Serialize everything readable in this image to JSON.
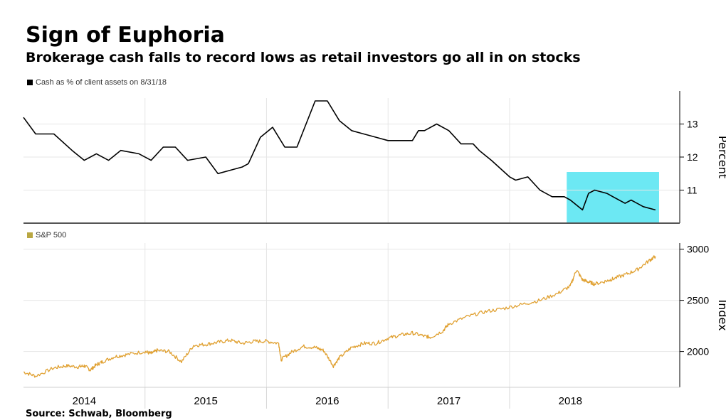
{
  "title": "Sign of Euphoria",
  "subtitle": "Brokerage cash falls to record lows as retail investors go all in on stocks",
  "source": "Source: Schwab, Bloomberg",
  "colors": {
    "cash_line": "#000000",
    "sp500_line": "#e0a030",
    "highlight": "#5ce6f2",
    "grid": "#e6e6e6"
  },
  "chart_data": [
    {
      "type": "line",
      "series": [
        {
          "name": "Cash as % of client assets on 8/31/18",
          "color": "#000000",
          "x": [
            2013.5,
            2013.6,
            2013.75,
            2013.9,
            2014.0,
            2014.1,
            2014.2,
            2014.3,
            2014.45,
            2014.55,
            2014.65,
            2014.75,
            2014.85,
            2015.0,
            2015.1,
            2015.2,
            2015.3,
            2015.35,
            2015.45,
            2015.55,
            2015.65,
            2015.75,
            2015.9,
            2016.0,
            2016.1,
            2016.2,
            2016.3,
            2016.4,
            2016.5,
            2016.55,
            2016.6,
            2016.7,
            2016.75,
            2016.8,
            2016.9,
            2017.0,
            2017.1,
            2017.2,
            2017.25,
            2017.35,
            2017.5,
            2017.55,
            2017.65,
            2017.75,
            2017.85,
            2017.95,
            2018.0,
            2018.1,
            2018.15,
            2018.2,
            2018.3,
            2018.35,
            2018.45,
            2018.5,
            2018.6,
            2018.7
          ],
          "values": [
            13.2,
            12.7,
            12.7,
            12.2,
            11.9,
            12.1,
            11.9,
            12.2,
            12.1,
            11.9,
            12.3,
            12.3,
            11.9,
            12.0,
            11.5,
            11.6,
            11.7,
            11.8,
            12.6,
            12.9,
            12.3,
            12.3,
            13.7,
            13.7,
            13.1,
            12.8,
            12.7,
            12.6,
            12.5,
            12.5,
            12.5,
            12.5,
            12.8,
            12.8,
            13.0,
            12.8,
            12.4,
            12.4,
            12.2,
            11.9,
            11.4,
            11.3,
            11.4,
            11.0,
            10.8,
            10.8,
            10.7,
            10.4,
            10.9,
            11.0,
            10.9,
            10.8,
            10.6,
            10.7,
            10.5,
            10.4
          ]
        }
      ],
      "y_ticks": [
        11,
        12,
        13
      ],
      "ylim": [
        10.0,
        14.0
      ],
      "ylabel": "Percent",
      "highlight": {
        "x_start": 2017.97,
        "x_end": 2018.73
      }
    },
    {
      "type": "line",
      "series": [
        {
          "name": "S&P 500",
          "color": "#e0a030",
          "x": [
            2013.5,
            2013.6,
            2013.75,
            2013.85,
            2013.95,
            2014.0,
            2014.05,
            2014.1,
            2014.15,
            2014.25,
            2014.35,
            2014.5,
            2014.55,
            2014.6,
            2014.7,
            2014.8,
            2014.9,
            2015.0,
            2015.1,
            2015.2,
            2015.3,
            2015.4,
            2015.5,
            2015.6,
            2015.62,
            2015.7,
            2015.8,
            2015.9,
            2015.97,
            2016.05,
            2016.1,
            2016.2,
            2016.3,
            2016.4,
            2016.5,
            2016.6,
            2016.7,
            2016.8,
            2016.85,
            2016.95,
            2017.0,
            2017.15,
            2017.3,
            2017.45,
            2017.6,
            2017.75,
            2017.9,
            2018.0,
            2018.05,
            2018.1,
            2018.15,
            2018.2,
            2018.3,
            2018.35,
            2018.45,
            2018.55,
            2018.65,
            2018.7
          ],
          "values": [
            1800,
            1760,
            1840,
            1860,
            1850,
            1860,
            1820,
            1870,
            1900,
            1950,
            1970,
            2000,
            1980,
            2010,
            2000,
            1900,
            2060,
            2070,
            2090,
            2110,
            2080,
            2100,
            2100,
            2080,
            1920,
            1990,
            2050,
            2040,
            2010,
            1860,
            1940,
            2040,
            2080,
            2080,
            2130,
            2160,
            2180,
            2150,
            2140,
            2200,
            2270,
            2340,
            2390,
            2420,
            2460,
            2500,
            2570,
            2640,
            2800,
            2700,
            2680,
            2660,
            2690,
            2710,
            2750,
            2800,
            2890,
            2930
          ],
          "noise": 18
        }
      ],
      "y_ticks": [
        2000,
        2500,
        3000
      ],
      "ylim": [
        1650,
        3060
      ],
      "ylabel": "Index"
    }
  ],
  "x_axis": {
    "range": [
      2013.5,
      2018.9
    ],
    "boundaries": [
      2014.5,
      2015.5,
      2016.5,
      2017.5
    ],
    "labels": [
      {
        "label": "2014",
        "x": 2014.0
      },
      {
        "label": "2015",
        "x": 2015.0
      },
      {
        "label": "2016",
        "x": 2016.0
      },
      {
        "label": "2017",
        "x": 2017.0
      },
      {
        "label": "2018",
        "x": 2018.0
      }
    ]
  }
}
